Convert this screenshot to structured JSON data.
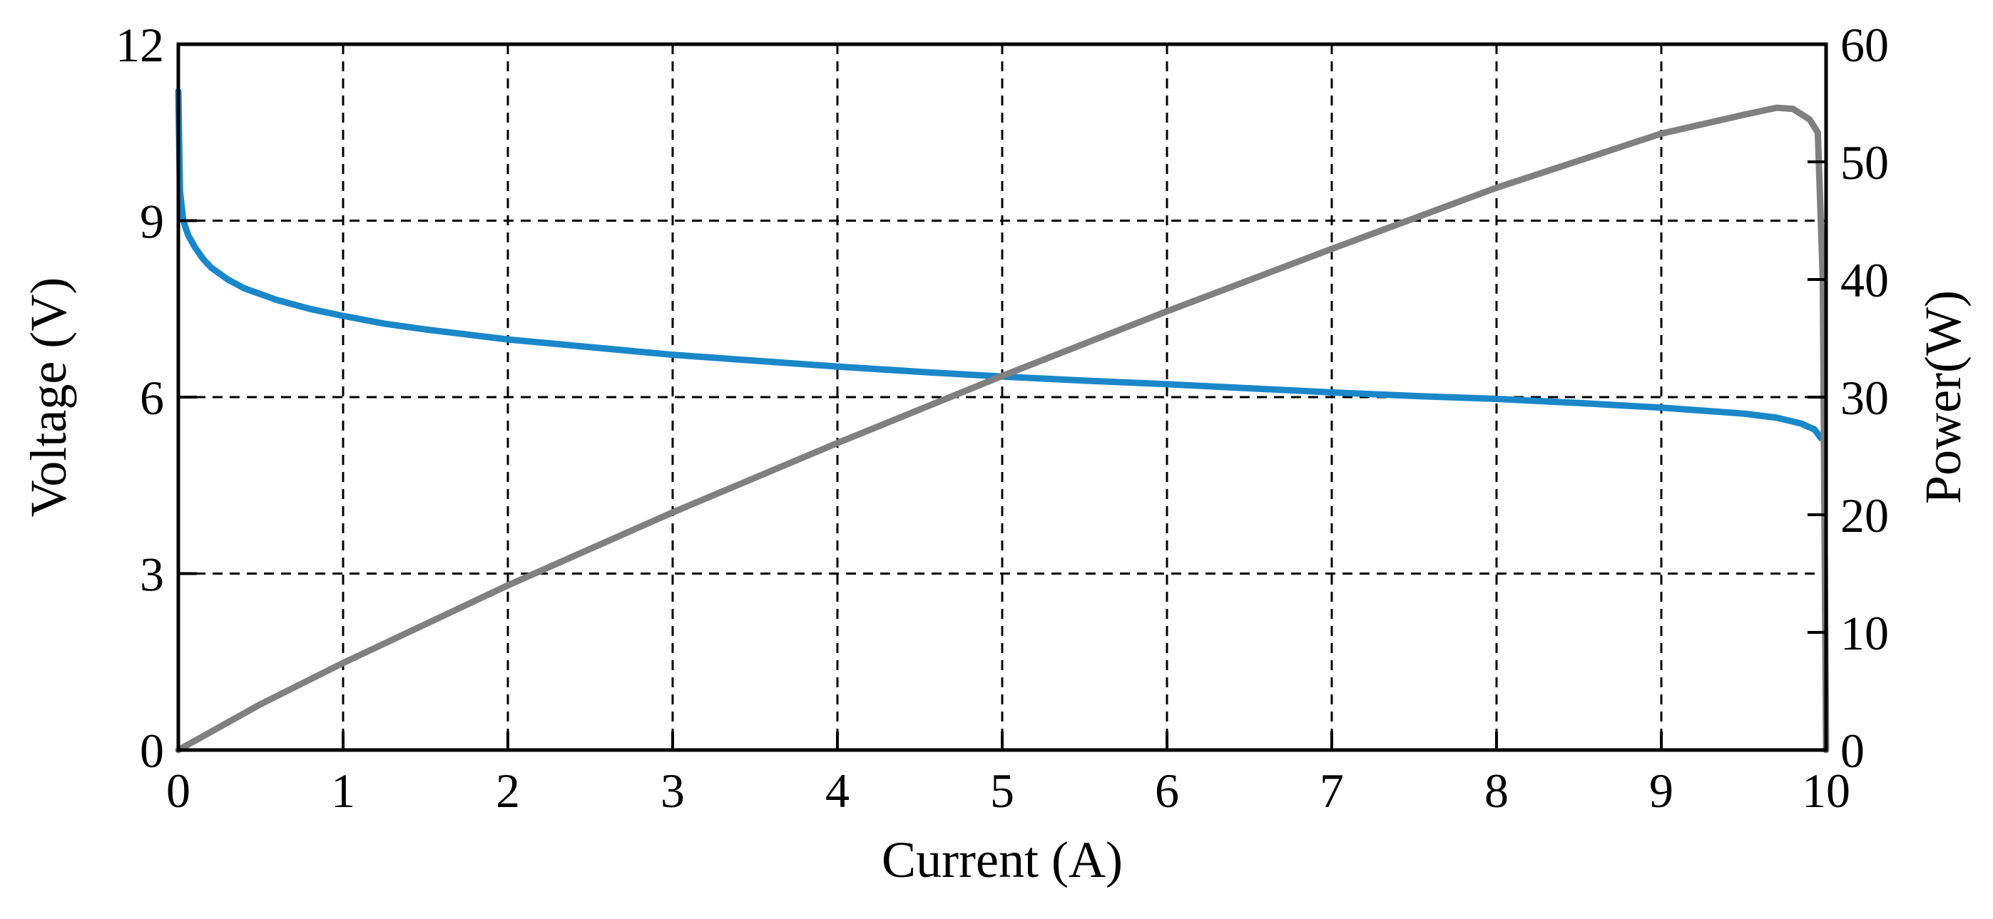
{
  "chart_data": {
    "type": "line",
    "title": "",
    "xlabel": "Current (A)",
    "ylabel_left": "Voltage (V)",
    "ylabel_right": "Power(W)",
    "xlim": [
      0,
      10
    ],
    "ylim_left": [
      0,
      12
    ],
    "ylim_right": [
      0,
      60
    ],
    "x_ticks": [
      0,
      1,
      2,
      3,
      4,
      5,
      6,
      7,
      8,
      9,
      10
    ],
    "x_tick_labels": [
      "0",
      "1",
      "2",
      "3",
      "4",
      "5",
      "6",
      "7",
      "8",
      "9",
      "10"
    ],
    "y_left_ticks": [
      0,
      3,
      6,
      9,
      12
    ],
    "y_left_tick_labels": [
      "0",
      "3",
      "6",
      "9",
      "12"
    ],
    "y_right_ticks": [
      0,
      10,
      20,
      30,
      40,
      50,
      60
    ],
    "y_right_tick_labels": [
      "0",
      "10",
      "20",
      "30",
      "40",
      "50",
      "60"
    ],
    "grid": true,
    "grid_style": "dashed",
    "legend": "none",
    "series": [
      {
        "axis": "left",
        "color": "#1a87c9",
        "points": [
          [
            0.0,
            11.2
          ],
          [
            0.01,
            9.5
          ],
          [
            0.03,
            9.0
          ],
          [
            0.06,
            8.75
          ],
          [
            0.1,
            8.55
          ],
          [
            0.15,
            8.35
          ],
          [
            0.2,
            8.2
          ],
          [
            0.3,
            8.0
          ],
          [
            0.4,
            7.85
          ],
          [
            0.5,
            7.75
          ],
          [
            0.6,
            7.65
          ],
          [
            0.8,
            7.5
          ],
          [
            1.0,
            7.38
          ],
          [
            1.25,
            7.25
          ],
          [
            1.5,
            7.15
          ],
          [
            2.0,
            6.98
          ],
          [
            2.5,
            6.85
          ],
          [
            3.0,
            6.72
          ],
          [
            3.5,
            6.62
          ],
          [
            4.0,
            6.52
          ],
          [
            4.5,
            6.43
          ],
          [
            5.0,
            6.35
          ],
          [
            5.5,
            6.28
          ],
          [
            6.0,
            6.22
          ],
          [
            6.5,
            6.15
          ],
          [
            7.0,
            6.08
          ],
          [
            7.5,
            6.02
          ],
          [
            8.0,
            5.97
          ],
          [
            8.5,
            5.9
          ],
          [
            9.0,
            5.82
          ],
          [
            9.3,
            5.76
          ],
          [
            9.5,
            5.72
          ],
          [
            9.7,
            5.65
          ],
          [
            9.85,
            5.55
          ],
          [
            9.93,
            5.45
          ],
          [
            9.97,
            5.3
          ]
        ]
      },
      {
        "axis": "right",
        "color": "#808080",
        "points": [
          [
            0.0,
            0.0
          ],
          [
            0.5,
            3.9
          ],
          [
            1.0,
            7.4
          ],
          [
            2.0,
            14.0
          ],
          [
            3.0,
            20.2
          ],
          [
            4.0,
            26.1
          ],
          [
            5.0,
            31.8
          ],
          [
            6.0,
            37.3
          ],
          [
            7.0,
            42.6
          ],
          [
            8.0,
            47.8
          ],
          [
            9.0,
            52.4
          ],
          [
            9.5,
            54.0
          ],
          [
            9.7,
            54.6
          ],
          [
            9.8,
            54.5
          ],
          [
            9.9,
            53.6
          ],
          [
            9.95,
            52.5
          ],
          [
            9.98,
            40.0
          ],
          [
            9.99,
            20.0
          ],
          [
            10.0,
            0.0
          ]
        ]
      }
    ]
  }
}
